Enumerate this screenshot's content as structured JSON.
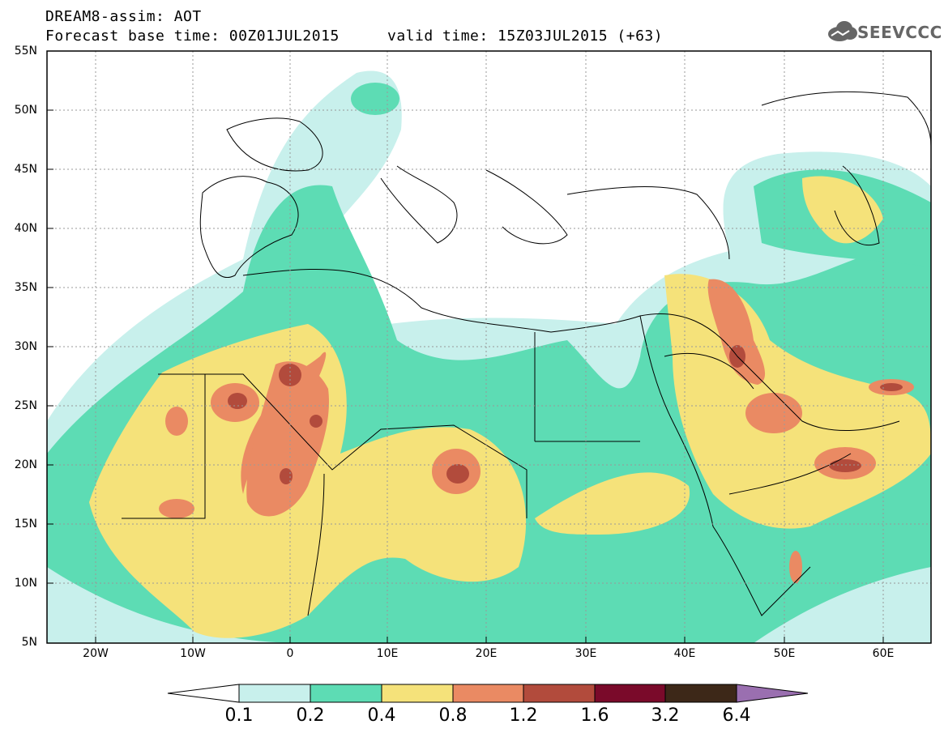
{
  "header": {
    "title_line": "DREAM8-assim: AOT",
    "base_time": "Forecast base time: 00Z01JUL2015",
    "valid_time": "valid time: 15Z03JUL2015 (+63)",
    "logo_text": "SEEVCCC"
  },
  "map": {
    "projection": "lat-lon",
    "lon_range": [
      -25,
      65
    ],
    "lat_range": [
      5,
      55
    ],
    "lat_labels": [
      "55N",
      "50N",
      "45N",
      "40N",
      "35N",
      "30N",
      "25N",
      "20N",
      "15N",
      "10N",
      "5N"
    ],
    "lon_labels": [
      "20W",
      "10W",
      "0",
      "10E",
      "20E",
      "30E",
      "40E",
      "50E",
      "60E"
    ],
    "grid": true
  },
  "colorbar": {
    "labels": [
      "0.1",
      "0.2",
      "0.4",
      "0.8",
      "1.2",
      "1.6",
      "3.2",
      "6.4"
    ],
    "colors": [
      "#c8f0ec",
      "#5ddcb4",
      "#f5e27a",
      "#ea8a63",
      "#b24b3c",
      "#7a0a2a",
      "#3d2818",
      "#9a6fb0"
    ],
    "under_color": "#ffffff"
  }
}
